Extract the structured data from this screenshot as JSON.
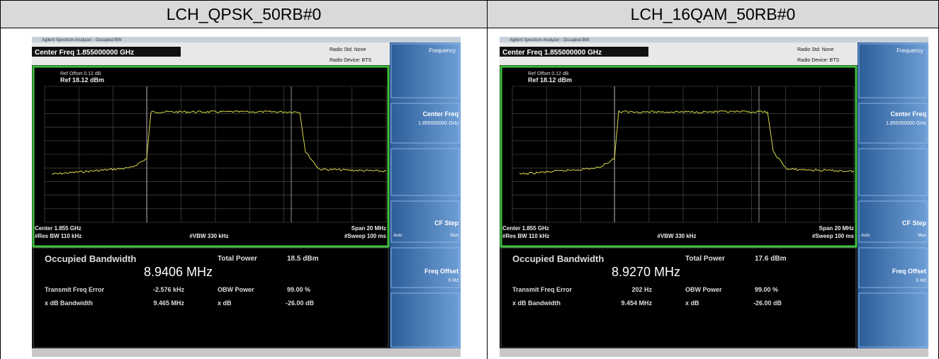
{
  "table": {
    "headers": [
      "LCH_QPSK_50RB#0",
      "LCH_16QAM_50RB#0"
    ]
  },
  "panels": [
    {
      "window_title": "Agilent Spectrum Analyzer - Occupied BW",
      "center_freq": "Center Freq 1.855000000 GHz",
      "radio_std": "Radio Std: None",
      "radio_device": "Radio Device: BTS",
      "ref_offset": "Ref Offset 0.12 dB",
      "ref_level": "Ref 18.12 dBm",
      "center": "Center 1.855 GHz",
      "res_bw": "#Res BW 110 kHz",
      "vbw": "#VBW 330 kHz",
      "span": "Span 20 MHz",
      "sweep": "#Sweep 100 ms",
      "obw_label": "Occupied Bandwidth",
      "obw_value": "8.9406 MHz",
      "total_power_label": "Total Power",
      "total_power": "18.5 dBm",
      "tfe_label": "Transmit Freq Error",
      "tfe": "-2.576 kHz",
      "obw_power_label": "OBW Power",
      "obw_power": "99.00 %",
      "xdb_bw_label": "x dB Bandwidth",
      "xdb_bw": "9.465 MHz",
      "xdb_label": "x dB",
      "xdb": "-26.00 dB",
      "softkey_menu": "Frequency",
      "softkey_center": "Center Freq",
      "softkey_center_value": "1.855000000 GHz",
      "softkey_cf_step": "CF Step",
      "softkey_auto": "Auto",
      "softkey_man": "Man",
      "softkey_offset": "Freq Offset",
      "softkey_offset_value": "0 Hz"
    },
    {
      "window_title": "Agilent Spectrum Analyzer - Occupied BW",
      "center_freq": "Center Freq 1.855000000 GHz",
      "radio_std": "Radio Std: None",
      "radio_device": "Radio Device: BTS",
      "ref_offset": "Ref Offset 0.12 dB",
      "ref_level": "Ref 18.12 dBm",
      "center": "Center 1.855 GHz",
      "res_bw": "#Res BW 110 kHz",
      "vbw": "#VBW 330 kHz",
      "span": "Span 20 MHz",
      "sweep": "#Sweep 100 ms",
      "obw_label": "Occupied Bandwidth",
      "obw_value": "8.9270 MHz",
      "total_power_label": "Total Power",
      "total_power": "17.6 dBm",
      "tfe_label": "Transmit Freq Error",
      "tfe": "202 Hz",
      "obw_power_label": "OBW Power",
      "obw_power": "99.00 %",
      "xdb_bw_label": "x dB Bandwidth",
      "xdb_bw": "9.454 MHz",
      "xdb_label": "x dB",
      "xdb": "-26.00 dB",
      "softkey_menu": "Frequency",
      "softkey_center": "Center Freq",
      "softkey_center_value": "1.855000000 GHz",
      "softkey_cf_step": "CF Step",
      "softkey_auto": "Auto",
      "softkey_man": "Man",
      "softkey_offset": "Freq Offset",
      "softkey_offset_value": "0 Hz"
    }
  ]
}
